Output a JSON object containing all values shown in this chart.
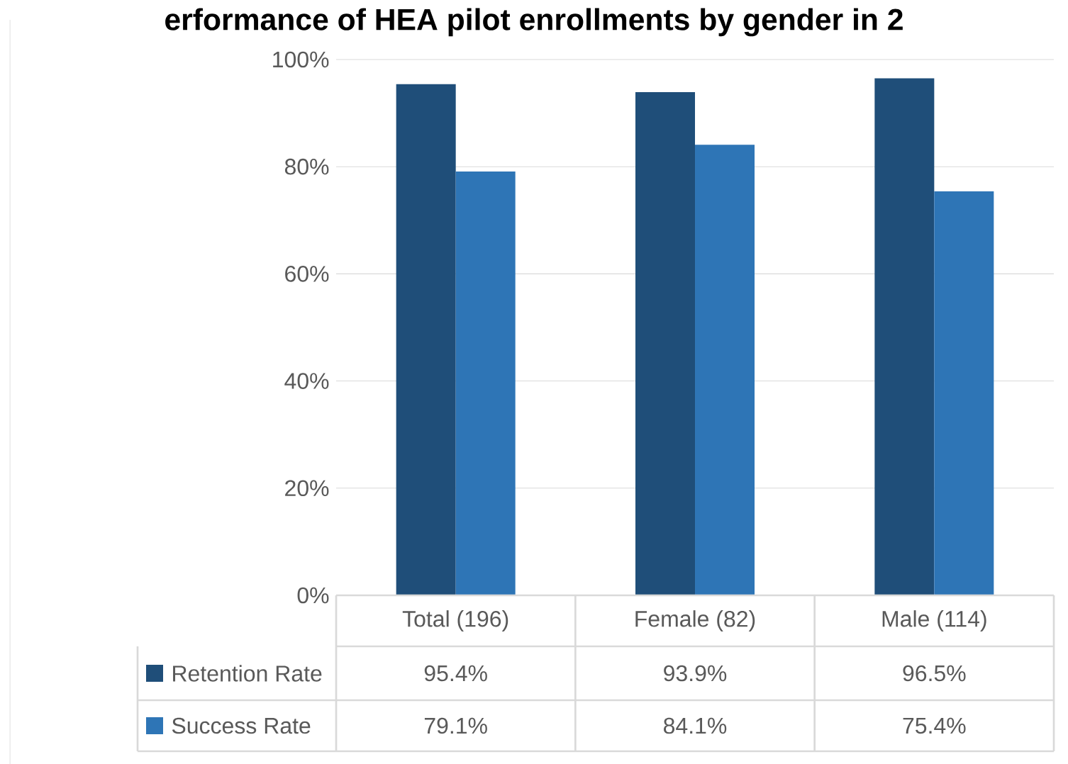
{
  "chart_data": {
    "type": "bar",
    "title": "erformance of HEA pilot enrollments by gender in 2",
    "categories": [
      "Total (196)",
      "Female (82)",
      "Male (114)"
    ],
    "series": [
      {
        "name": "Retention Rate",
        "color": "#1f4e79",
        "values": [
          95.4,
          93.9,
          96.5
        ],
        "value_labels": [
          "95.4%",
          "93.9%",
          "96.5%"
        ]
      },
      {
        "name": "Success Rate",
        "color": "#2e75b6",
        "values": [
          79.1,
          84.1,
          75.4
        ],
        "value_labels": [
          "79.1%",
          "84.1%",
          "75.4%"
        ]
      }
    ],
    "ylim": [
      0,
      100
    ],
    "yticks": [
      {
        "value": 0,
        "label": "0%"
      },
      {
        "value": 20,
        "label": "20%"
      },
      {
        "value": 40,
        "label": "40%"
      },
      {
        "value": 60,
        "label": "60%"
      },
      {
        "value": 80,
        "label": "80%"
      },
      {
        "value": 100,
        "label": "100%"
      }
    ],
    "grid": "y",
    "legend": "bottom left"
  }
}
